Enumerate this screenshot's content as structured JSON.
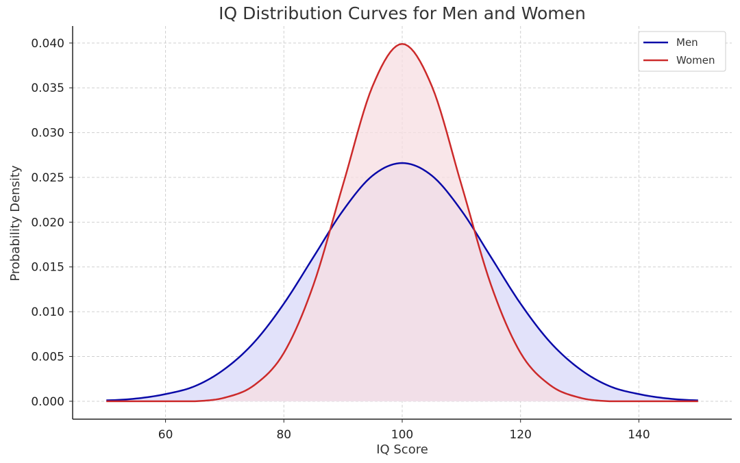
{
  "chart_data": {
    "type": "area",
    "title": "IQ Distribution Curves for Men and Women",
    "xlabel": "IQ Score",
    "ylabel": "Probability Density",
    "xlim": [
      44.3,
      155.7
    ],
    "ylim": [
      -0.002,
      0.0419
    ],
    "xticks": [
      60,
      80,
      100,
      120,
      140
    ],
    "yticks": [
      0.0,
      0.005,
      0.01,
      0.015,
      0.02,
      0.025,
      0.03,
      0.035,
      0.04
    ],
    "xtick_labels": [
      "60",
      "80",
      "100",
      "120",
      "140"
    ],
    "ytick_labels": [
      "0.000",
      "0.005",
      "0.010",
      "0.015",
      "0.020",
      "0.025",
      "0.030",
      "0.035",
      "0.040"
    ],
    "grid": true,
    "legend_position": "top-right",
    "series": [
      {
        "name": "Men",
        "color": "#0a0aa8",
        "fill": "#e2e2fa",
        "x": [
          50,
          55,
          60,
          65,
          70,
          75,
          80,
          85,
          90,
          95,
          100,
          105,
          110,
          115,
          120,
          125,
          130,
          135,
          140,
          145,
          150
        ],
        "y": [
          0.0001,
          0.0003,
          0.0008,
          0.0017,
          0.0036,
          0.0066,
          0.0109,
          0.0161,
          0.0213,
          0.0252,
          0.0266,
          0.0252,
          0.0213,
          0.0161,
          0.0109,
          0.0066,
          0.0036,
          0.0017,
          0.0008,
          0.0003,
          0.0001
        ]
      },
      {
        "name": "Women",
        "color": "#cc2a2a",
        "fill": "#f7dde2",
        "x": [
          50,
          55,
          60,
          65,
          70,
          75,
          80,
          85,
          90,
          95,
          100,
          105,
          110,
          115,
          120,
          125,
          130,
          135,
          140,
          145,
          150
        ],
        "y": [
          0.0,
          0.0,
          0.0,
          0.0,
          0.0004,
          0.0018,
          0.0054,
          0.013,
          0.0242,
          0.0352,
          0.0399,
          0.0352,
          0.0242,
          0.013,
          0.0054,
          0.0018,
          0.0004,
          0.0,
          0.0,
          0.0,
          0.0
        ]
      }
    ]
  }
}
